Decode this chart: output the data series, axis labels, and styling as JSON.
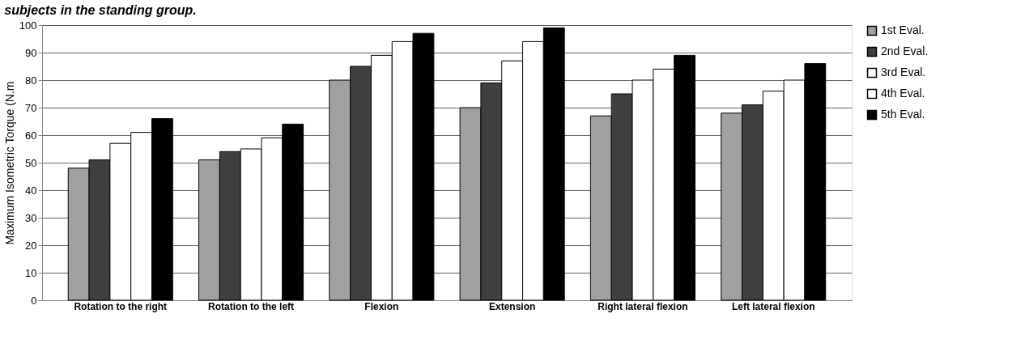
{
  "chart_data": {
    "type": "bar",
    "title": "subjects in the standing group.",
    "ylabel": "Maximum Isometric Torque (N.m",
    "categories": [
      "Rotation to the right",
      "Rotation to the left",
      "Flexion",
      "Extension",
      "Right lateral flexion",
      "Left lateral flexion"
    ],
    "series": [
      {
        "name": "1st Eval.",
        "color": "#a0a0a0",
        "values": [
          48,
          51,
          80,
          70,
          67,
          68
        ]
      },
      {
        "name": "2nd Eval.",
        "color": "#404040",
        "values": [
          51,
          54,
          85,
          79,
          75,
          71
        ]
      },
      {
        "name": "3rd Eval.",
        "color": "#ffffff",
        "values": [
          57,
          55,
          89,
          87,
          80,
          76
        ]
      },
      {
        "name": "4th Eval.",
        "color": "#ffffff",
        "values": [
          61,
          59,
          94,
          94,
          84,
          80
        ]
      },
      {
        "name": "5th Eval.",
        "color": "#000000",
        "values": [
          66,
          64,
          97,
          99,
          89,
          86
        ]
      }
    ],
    "ylim": [
      0,
      100
    ],
    "yticks": [
      0,
      10,
      20,
      30,
      40,
      50,
      60,
      70,
      80,
      90,
      100
    ],
    "grid": "y",
    "legend": "right"
  }
}
